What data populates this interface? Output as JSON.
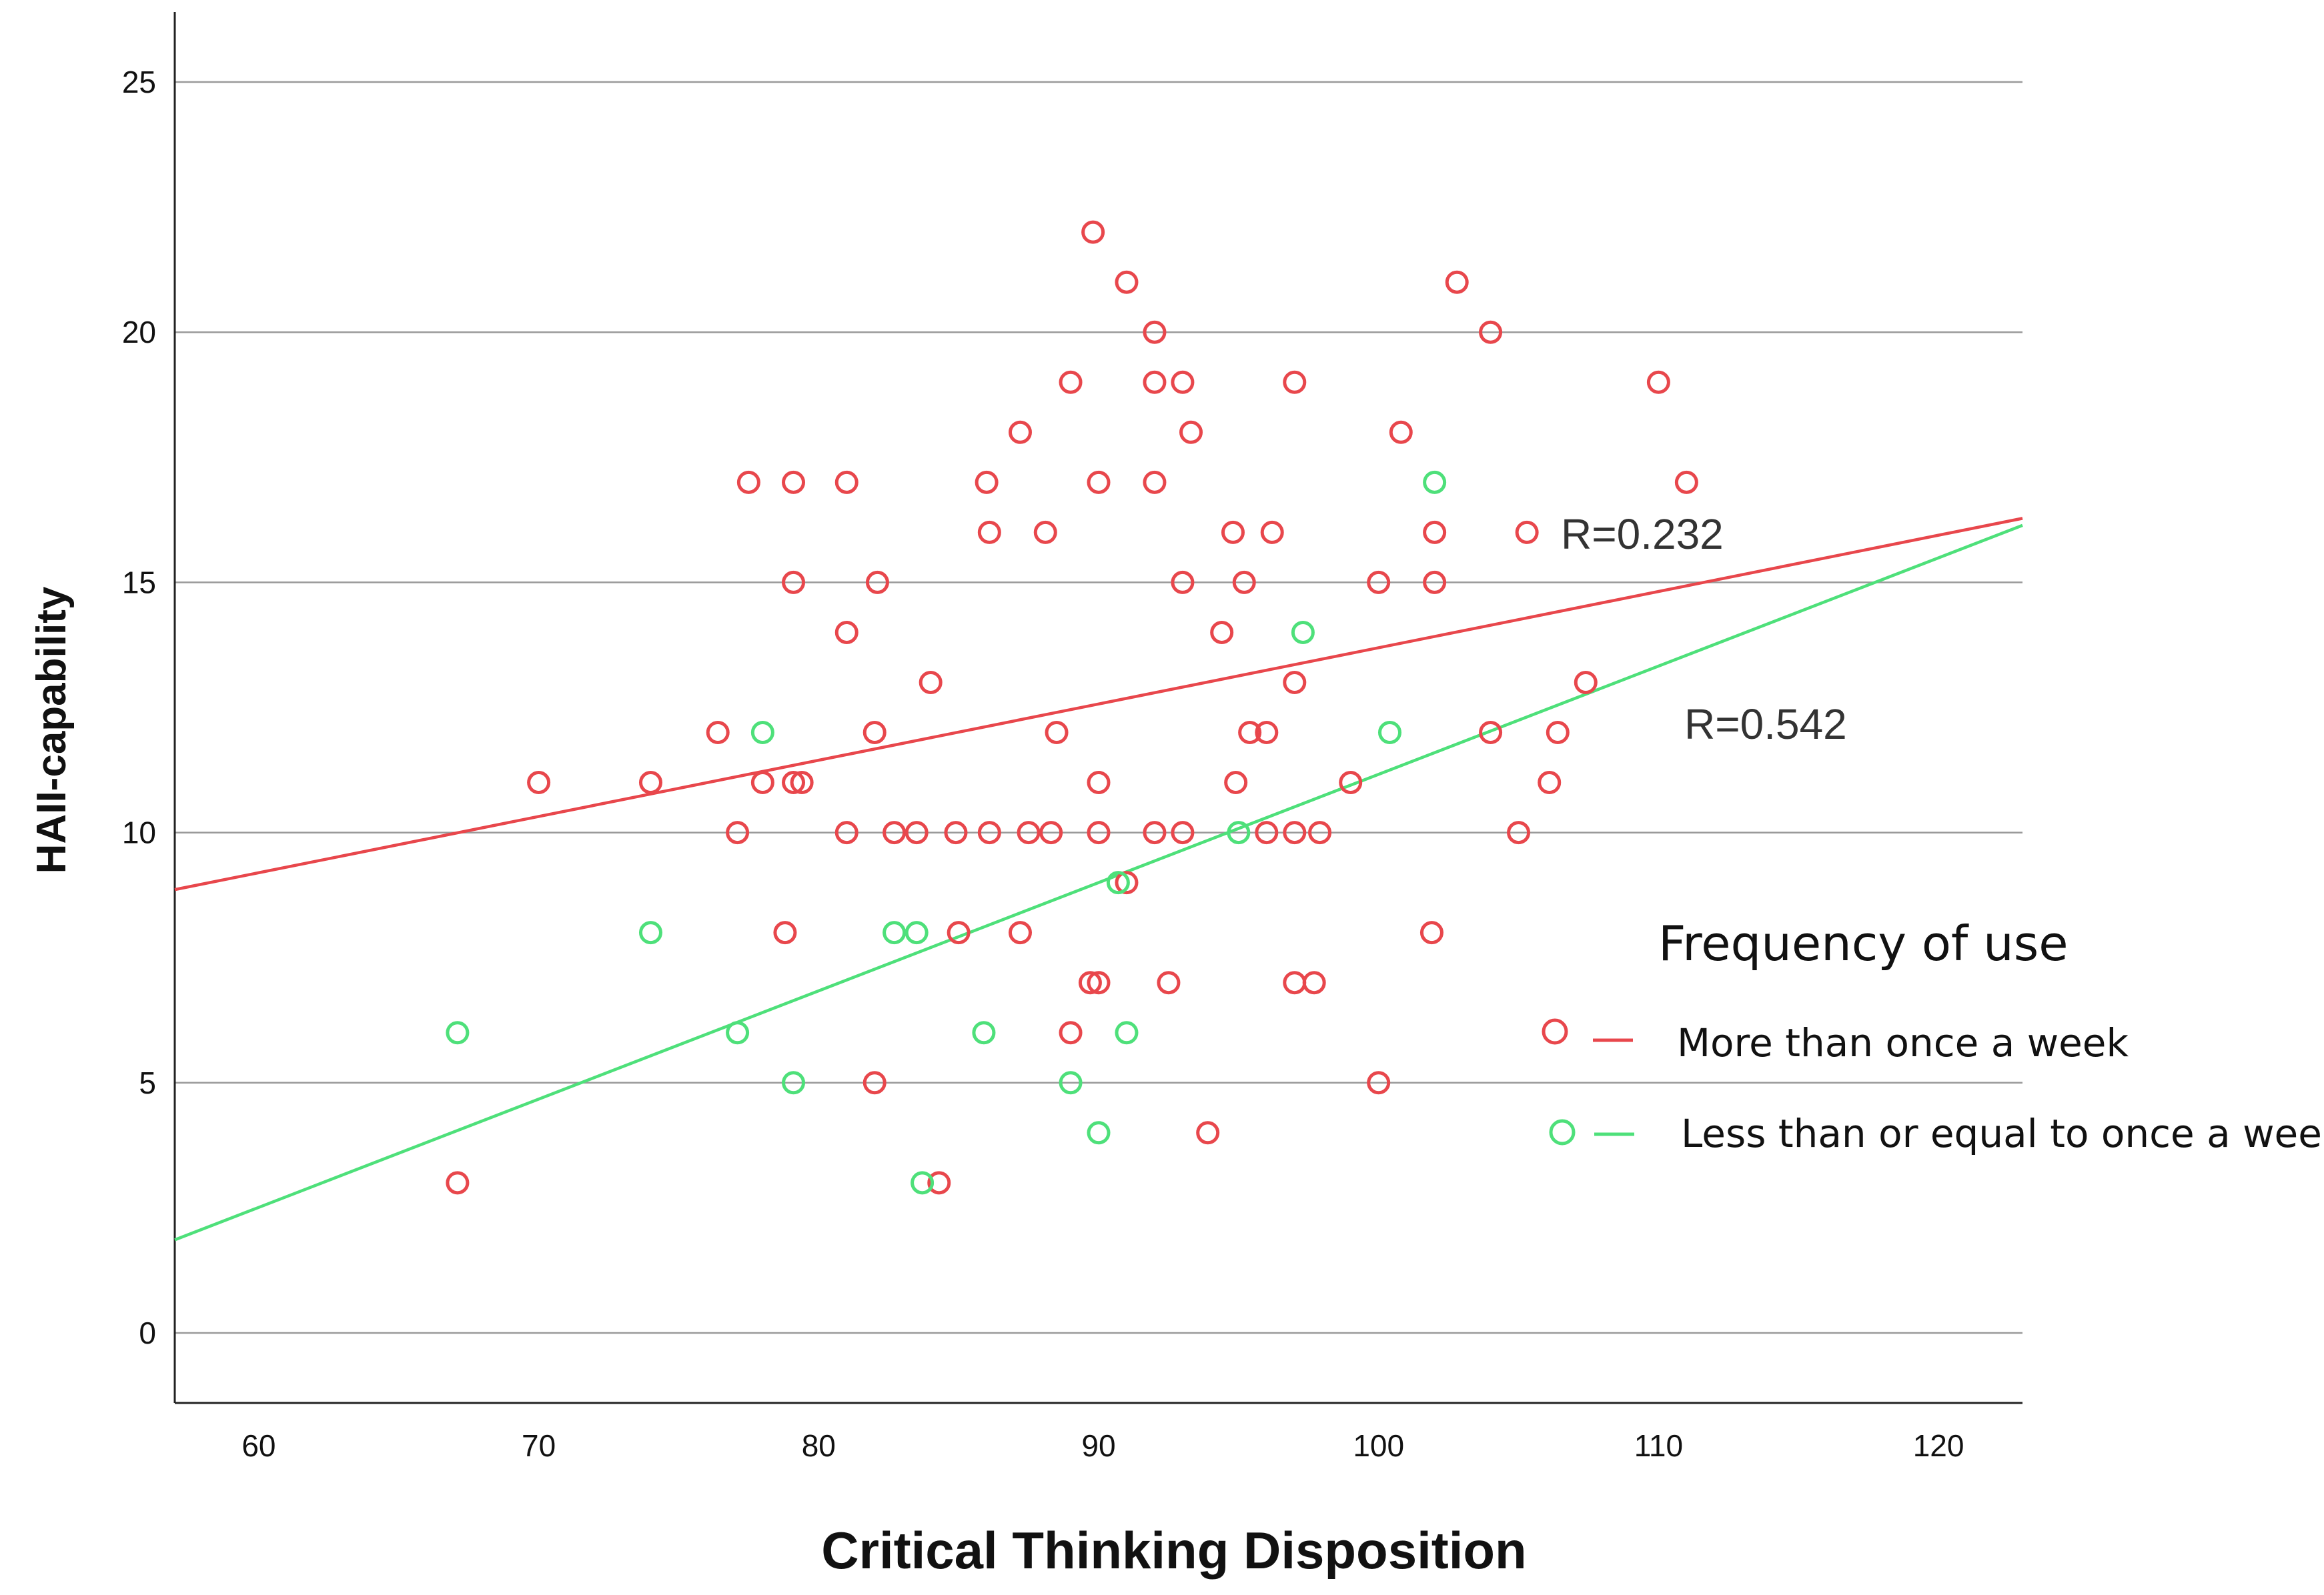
{
  "chart_data": {
    "type": "scatter",
    "xlabel": "Critical Thinking Disposition",
    "ylabel": "HAII-capability",
    "xlim": [
      57,
      123
    ],
    "ylim": [
      -1.4,
      26.4
    ],
    "xticks": [
      60,
      70,
      80,
      90,
      100,
      110,
      120
    ],
    "yticks": [
      0,
      5,
      10,
      15,
      20,
      25
    ],
    "grid": "horizontal",
    "legend": {
      "title": "Frequency of use",
      "position": "right"
    },
    "annotations": [
      {
        "text": "R=0.232",
        "series": "More than once a week"
      },
      {
        "text": "R=0.542",
        "series": "Less than or equal to once a week"
      }
    ],
    "series": [
      {
        "name": "More than once a week",
        "color": "#e8474c",
        "fit": [
          [
            57,
            8.86
          ],
          [
            123,
            16.28
          ]
        ],
        "points": [
          [
            89.8,
            22
          ],
          [
            91,
            21
          ],
          [
            102.8,
            21
          ],
          [
            92,
            20
          ],
          [
            104,
            20
          ],
          [
            89,
            19
          ],
          [
            92,
            19
          ],
          [
            93,
            19
          ],
          [
            97,
            19
          ],
          [
            110,
            19
          ],
          [
            87.2,
            18
          ],
          [
            93.3,
            18
          ],
          [
            100.8,
            18
          ],
          [
            77.5,
            17
          ],
          [
            79.1,
            17
          ],
          [
            81,
            17
          ],
          [
            86,
            17
          ],
          [
            90,
            17
          ],
          [
            92,
            17
          ],
          [
            111,
            17
          ],
          [
            86.1,
            16
          ],
          [
            88.1,
            16
          ],
          [
            94.8,
            16
          ],
          [
            96.2,
            16
          ],
          [
            102,
            16
          ],
          [
            105.3,
            16
          ],
          [
            79.1,
            15
          ],
          [
            82.1,
            15
          ],
          [
            93,
            15
          ],
          [
            95.2,
            15
          ],
          [
            100,
            15
          ],
          [
            102,
            15
          ],
          [
            81,
            14
          ],
          [
            94.4,
            14
          ],
          [
            84,
            13
          ],
          [
            97,
            13
          ],
          [
            107.4,
            13
          ],
          [
            76.4,
            12
          ],
          [
            82,
            12
          ],
          [
            88.5,
            12
          ],
          [
            95.4,
            12
          ],
          [
            96,
            12
          ],
          [
            104,
            12
          ],
          [
            106.4,
            12
          ],
          [
            70,
            11
          ],
          [
            74,
            11
          ],
          [
            78,
            11
          ],
          [
            79.1,
            11
          ],
          [
            79.4,
            11
          ],
          [
            90,
            11
          ],
          [
            94.9,
            11
          ],
          [
            99,
            11
          ],
          [
            106.1,
            11
          ],
          [
            77.1,
            10
          ],
          [
            81,
            10
          ],
          [
            82.7,
            10
          ],
          [
            83.5,
            10
          ],
          [
            84.9,
            10
          ],
          [
            86.1,
            10
          ],
          [
            87.5,
            10
          ],
          [
            88.3,
            10
          ],
          [
            90,
            10
          ],
          [
            92,
            10
          ],
          [
            93,
            10
          ],
          [
            96,
            10
          ],
          [
            97,
            10
          ],
          [
            97.9,
            10
          ],
          [
            105,
            10
          ],
          [
            91,
            9
          ],
          [
            78.8,
            8
          ],
          [
            85,
            8
          ],
          [
            87.2,
            8
          ],
          [
            101.9,
            8
          ],
          [
            89.7,
            7
          ],
          [
            90,
            7
          ],
          [
            92.5,
            7
          ],
          [
            97,
            7
          ],
          [
            97.7,
            7
          ],
          [
            89,
            6
          ],
          [
            82,
            5
          ],
          [
            100,
            5
          ],
          [
            93.9,
            4
          ],
          [
            67.1,
            3
          ],
          [
            84.3,
            3
          ]
        ]
      },
      {
        "name": "Less than or equal to once a week",
        "color": "#4ee07a",
        "fit": [
          [
            57,
            1.86
          ],
          [
            123,
            16.14
          ]
        ],
        "points": [
          [
            102,
            17
          ],
          [
            97.3,
            14
          ],
          [
            78,
            12
          ],
          [
            100.4,
            12
          ],
          [
            95,
            10
          ],
          [
            90.7,
            9
          ],
          [
            74,
            8
          ],
          [
            82.7,
            8
          ],
          [
            83.5,
            8
          ],
          [
            67.1,
            6
          ],
          [
            77.1,
            6
          ],
          [
            85.9,
            6
          ],
          [
            91,
            6
          ],
          [
            79.1,
            5
          ],
          [
            89,
            5
          ],
          [
            90,
            4
          ],
          [
            83.7,
            3
          ]
        ]
      }
    ]
  }
}
